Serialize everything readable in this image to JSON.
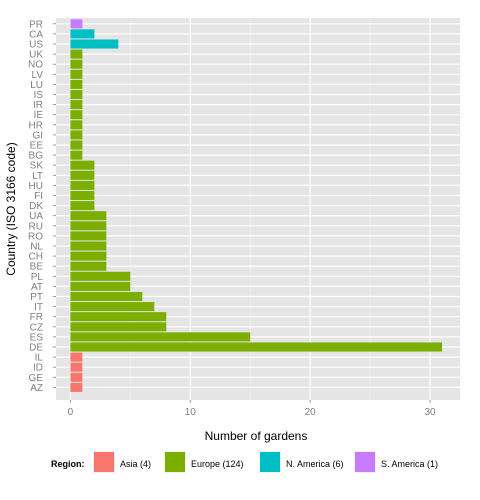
{
  "chart_data": {
    "type": "bar",
    "orientation": "horizontal",
    "xlabel": "Number of gardens",
    "ylabel": "Country (ISO 3166 code)",
    "xlim": [
      -1.2,
      32.5
    ],
    "xticks": [
      0,
      10,
      20,
      30
    ],
    "grid": true,
    "legend_position": "bottom",
    "legend_title": "Region:",
    "regions": [
      {
        "key": "asia",
        "label": "Asia (4)",
        "color": "#F8766D"
      },
      {
        "key": "europe",
        "label": "Europe (124)",
        "color": "#7CAE00"
      },
      {
        "key": "namerica",
        "label": "N. America (6)",
        "color": "#00BFC4"
      },
      {
        "key": "samerica",
        "label": "S. America (1)",
        "color": "#C77CFF"
      }
    ],
    "categories": [
      "PR",
      "CA",
      "US",
      "UK",
      "NO",
      "LV",
      "LU",
      "IS",
      "IR",
      "IE",
      "HR",
      "GI",
      "EE",
      "BG",
      "SK",
      "LT",
      "HU",
      "FI",
      "DK",
      "UA",
      "RU",
      "RO",
      "NL",
      "CH",
      "BE",
      "PL",
      "AT",
      "PT",
      "IT",
      "FR",
      "CZ",
      "ES",
      "DE",
      "IL",
      "ID",
      "GE",
      "AZ"
    ],
    "values": [
      1,
      2,
      4,
      1,
      1,
      1,
      1,
      1,
      1,
      1,
      1,
      1,
      1,
      1,
      2,
      2,
      2,
      2,
      2,
      3,
      3,
      3,
      3,
      3,
      3,
      5,
      5,
      6,
      7,
      8,
      8,
      15,
      31,
      1,
      1,
      1,
      1
    ],
    "region_of": [
      "samerica",
      "namerica",
      "namerica",
      "europe",
      "europe",
      "europe",
      "europe",
      "europe",
      "europe",
      "europe",
      "europe",
      "europe",
      "europe",
      "europe",
      "europe",
      "europe",
      "europe",
      "europe",
      "europe",
      "europe",
      "europe",
      "europe",
      "europe",
      "europe",
      "europe",
      "europe",
      "europe",
      "europe",
      "europe",
      "europe",
      "europe",
      "europe",
      "europe",
      "asia",
      "asia",
      "asia",
      "asia"
    ]
  }
}
